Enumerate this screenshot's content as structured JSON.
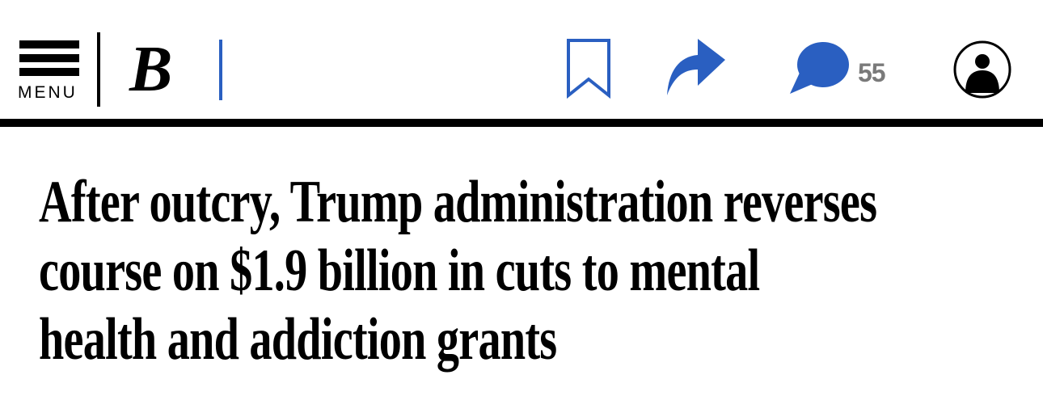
{
  "header": {
    "menu_label": "MENU",
    "logo_text": "B",
    "comment_count": "55",
    "icons": [
      "menu-icon",
      "bookmark-icon",
      "share-icon",
      "comment-icon",
      "account-icon"
    ],
    "accent_color": "#2a5fc1"
  },
  "article": {
    "headline_lines": [
      "After outcry, Trump administration reverses",
      "course on $1.9 billion in cuts to mental",
      "health and addiction grants"
    ]
  }
}
